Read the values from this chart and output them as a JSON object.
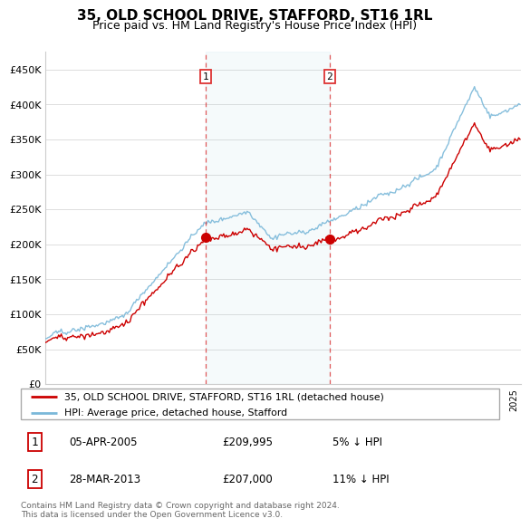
{
  "title": "35, OLD SCHOOL DRIVE, STAFFORD, ST16 1RL",
  "subtitle": "Price paid vs. HM Land Registry's House Price Index (HPI)",
  "ylabel_ticks": [
    "£0",
    "£50K",
    "£100K",
    "£150K",
    "£200K",
    "£250K",
    "£300K",
    "£350K",
    "£400K",
    "£450K"
  ],
  "ytick_values": [
    0,
    50000,
    100000,
    150000,
    200000,
    250000,
    300000,
    350000,
    400000,
    450000
  ],
  "ylim": [
    0,
    475000
  ],
  "hpi_color": "#7ab8d9",
  "price_color": "#cc0000",
  "sale1_price": 209995,
  "sale2_price": 207000,
  "sale1_t": 2005.25,
  "sale2_t": 2013.22,
  "legend_line1": "35, OLD SCHOOL DRIVE, STAFFORD, ST16 1RL (detached house)",
  "legend_line2": "HPI: Average price, detached house, Stafford",
  "table_row1": [
    "1",
    "05-APR-2005",
    "£209,995",
    "5% ↓ HPI"
  ],
  "table_row2": [
    "2",
    "28-MAR-2013",
    "£207,000",
    "11% ↓ HPI"
  ],
  "footer": "Contains HM Land Registry data © Crown copyright and database right 2024.\nThis data is licensed under the Open Government Licence v3.0.",
  "vline1_x": 2005.25,
  "vline2_x": 2013.22,
  "xmin": 1995,
  "xmax": 2025.5
}
